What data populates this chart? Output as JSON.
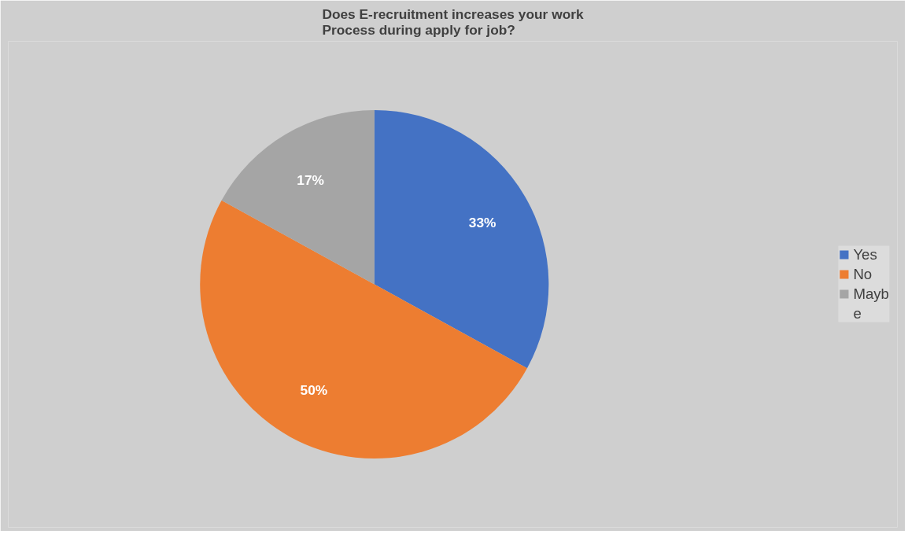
{
  "chart_data": {
    "type": "pie",
    "title": "Does E-recruitment increases your work\nProcess during apply for job?",
    "categories": [
      "Yes",
      "No",
      "Mayb",
      "e"
    ],
    "values": [
      33,
      50,
      17,
      0
    ],
    "colors": [
      "#4472c4",
      "#ed7d31",
      "#a5a5a5",
      "#ffc000"
    ],
    "value_labels": [
      "33%",
      "50%",
      "17%",
      null
    ],
    "legend": "right"
  }
}
